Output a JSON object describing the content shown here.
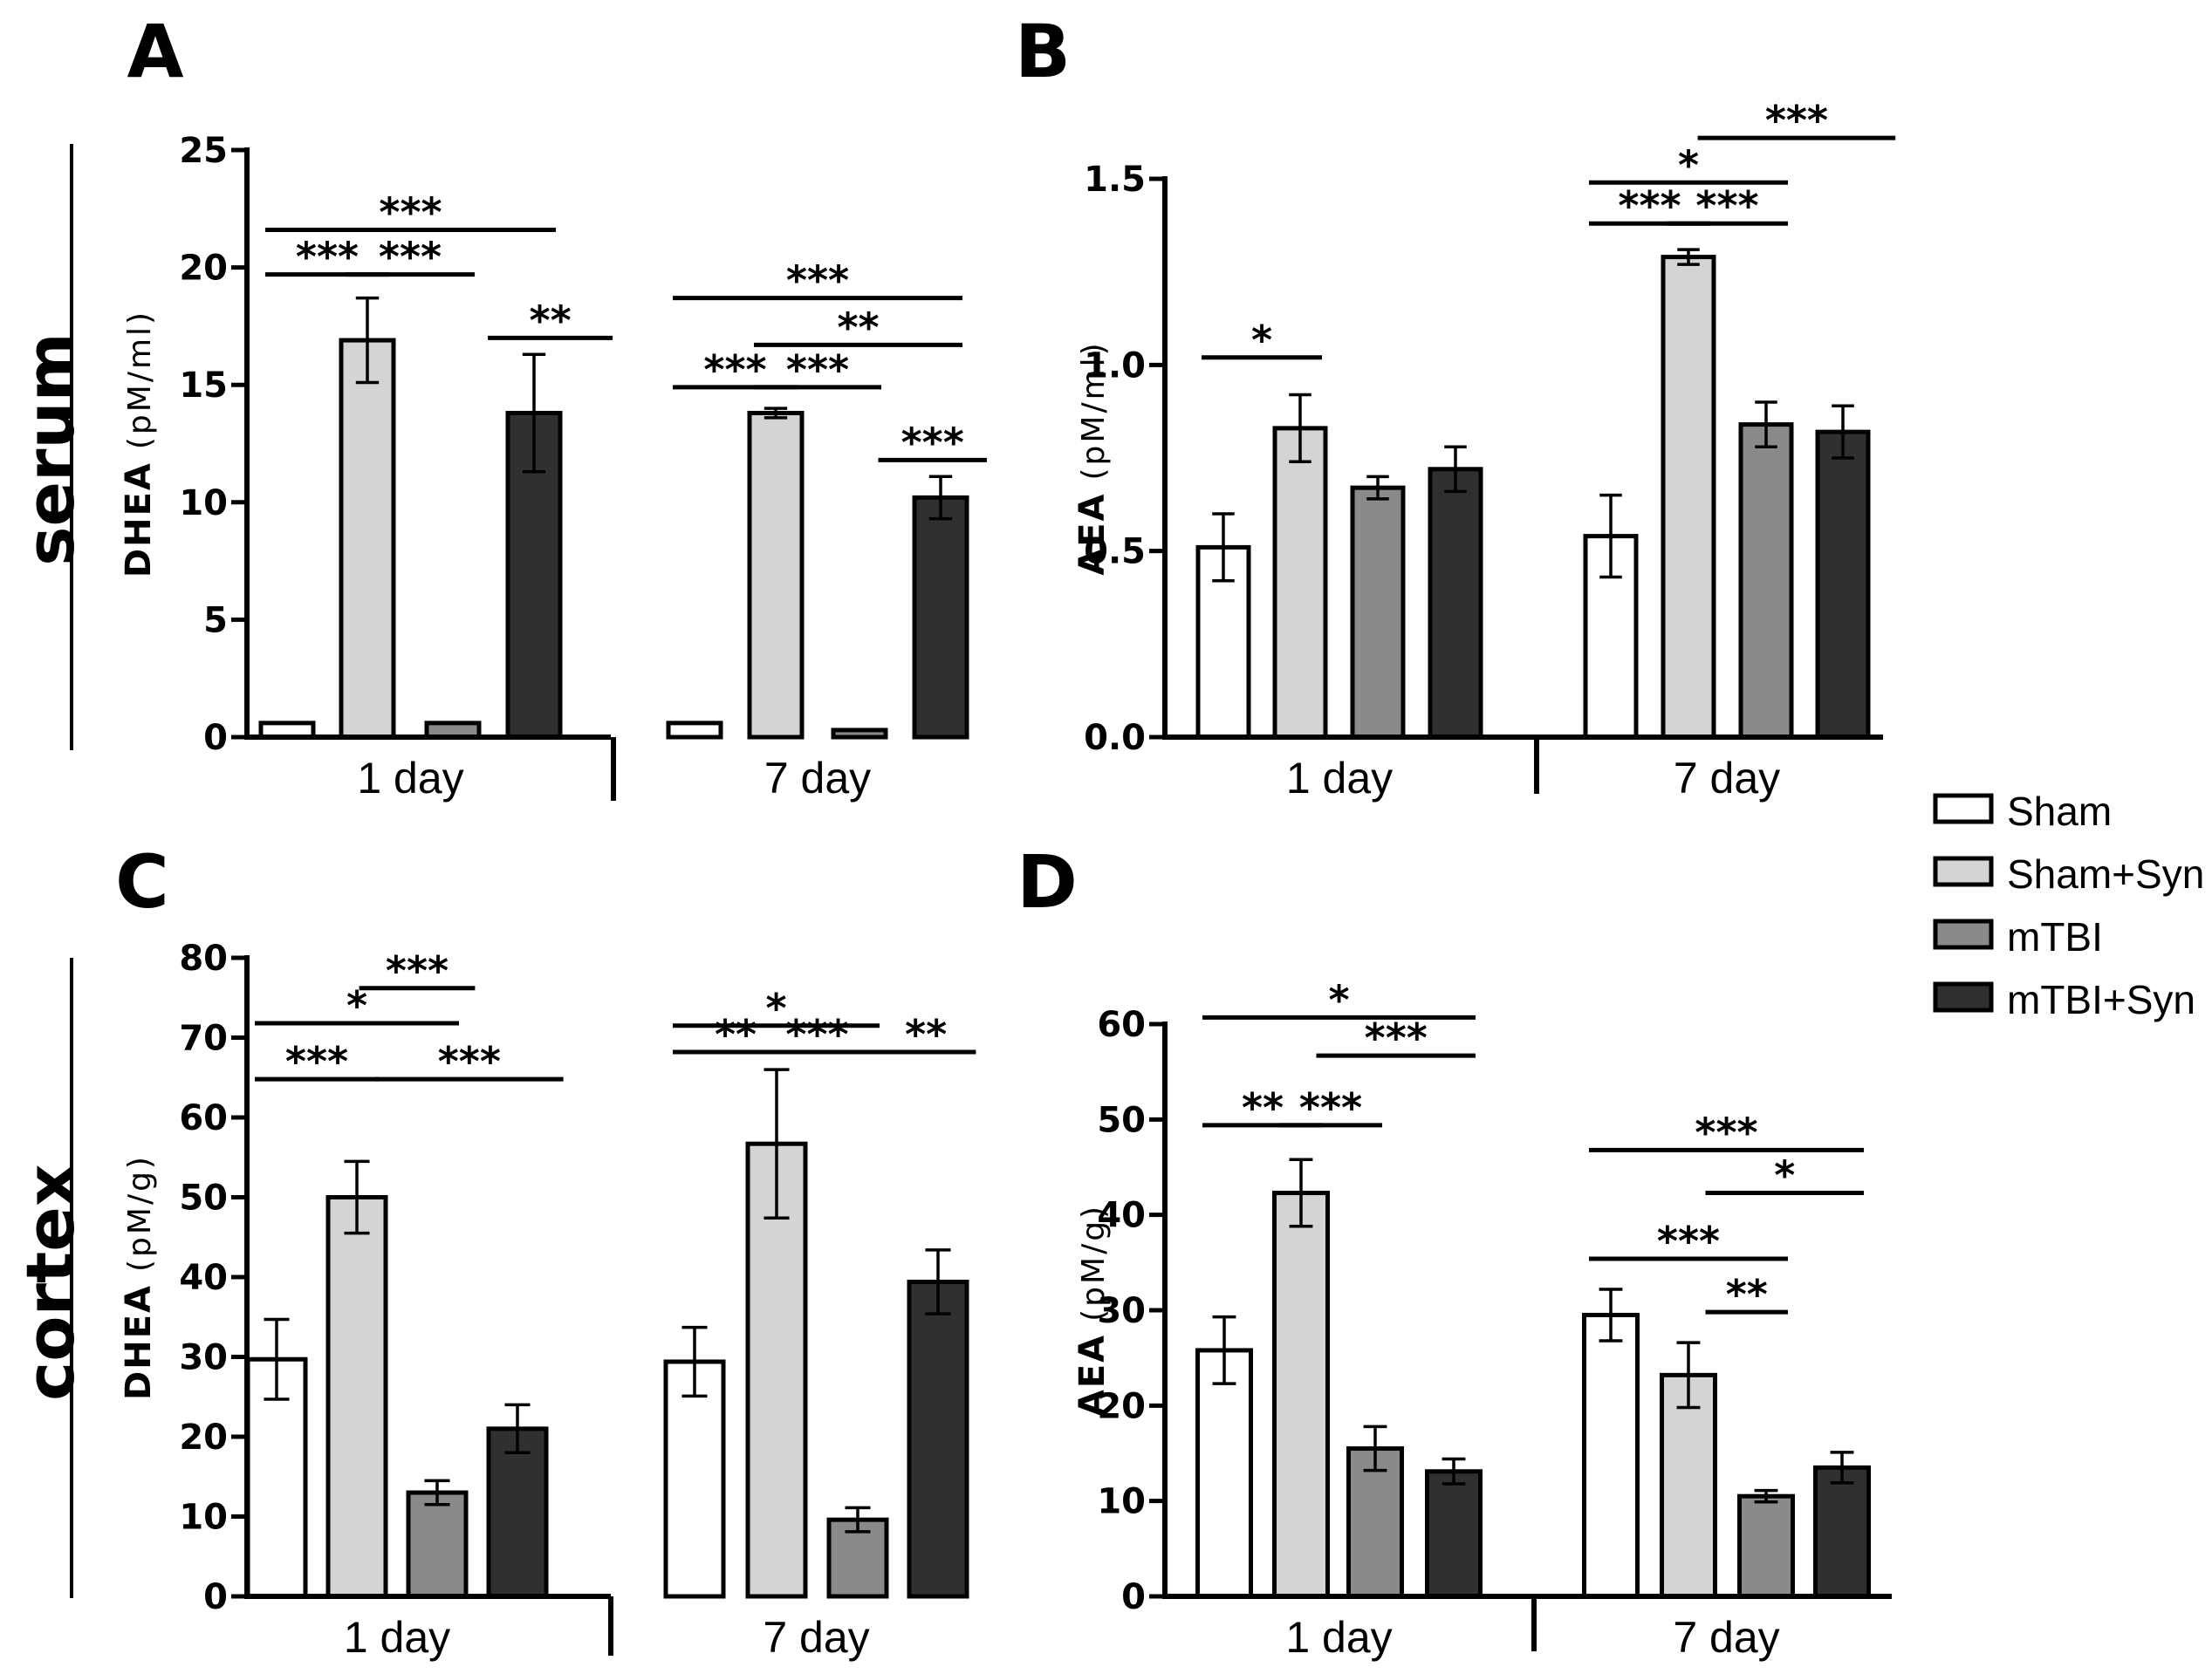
{
  "row_labels": [
    "serum",
    "cortex"
  ],
  "legend": [
    {
      "label": "Sham",
      "color": "#ffffff"
    },
    {
      "label": "Sham+Syn",
      "color": "#d4d4d4"
    },
    {
      "label": "mTBI",
      "color": "#8a8a8a"
    },
    {
      "label": "mTBI+Syn",
      "color": "#303030"
    }
  ],
  "chart_data": [
    {
      "panel": "A",
      "type": "bar",
      "categories": [
        "1 day",
        "7 day"
      ],
      "ylabel": "DHEA",
      "yunit": "(pM/ml)",
      "ylim": [
        0,
        25
      ],
      "yticks": [
        "0",
        "5",
        "10",
        "15",
        "20",
        "25"
      ],
      "series": [
        {
          "name": "Sham",
          "values": [
            0.6,
            0.6
          ],
          "errors": [
            0,
            0
          ]
        },
        {
          "name": "Sham+Syn",
          "values": [
            16.9,
            13.8
          ],
          "errors": [
            1.8,
            0.2
          ]
        },
        {
          "name": "mTBI",
          "values": [
            0.6,
            0.3
          ],
          "errors": [
            0,
            0
          ]
        },
        {
          "name": "mTBI+Syn",
          "values": [
            13.8,
            10.2
          ],
          "errors": [
            2.5,
            0.9
          ]
        }
      ],
      "significance": [
        {
          "group": 0,
          "from": 0,
          "to": 3,
          "y": 21.6,
          "label": "***"
        },
        {
          "group": 0,
          "from": 0,
          "to": 1,
          "y": 19.7,
          "label": "***"
        },
        {
          "group": 0,
          "from": 1,
          "to": 2,
          "y": 19.7,
          "label": "***"
        },
        {
          "group": 0,
          "from": 2.7,
          "to": 3.7,
          "y": 17.0,
          "label": "**"
        },
        {
          "group": 1,
          "from": 0,
          "to": 3,
          "y": 18.7,
          "label": "***"
        },
        {
          "group": 1,
          "from": 1,
          "to": 3,
          "y": 16.7,
          "label": "**"
        },
        {
          "group": 1,
          "from": 0,
          "to": 1,
          "y": 14.9,
          "label": "***"
        },
        {
          "group": 1,
          "from": 1,
          "to": 2,
          "y": 14.9,
          "label": "***"
        },
        {
          "group": 1,
          "from": 2.5,
          "to": 3.3,
          "y": 11.8,
          "label": "***"
        }
      ]
    },
    {
      "panel": "B",
      "type": "bar",
      "categories": [
        "1 day",
        "7 day"
      ],
      "ylabel": "AEA",
      "yunit": "(pM/ml)",
      "ylim": [
        0,
        1.5
      ],
      "yticks": [
        "0.0",
        "0.5",
        "1.0",
        "1.5"
      ],
      "series": [
        {
          "name": "Sham",
          "values": [
            0.51,
            0.54
          ],
          "errors": [
            0.09,
            0.11
          ]
        },
        {
          "name": "Sham+Syn",
          "values": [
            0.83,
            1.29
          ],
          "errors": [
            0.09,
            0.02
          ]
        },
        {
          "name": "mTBI",
          "values": [
            0.67,
            0.84
          ],
          "errors": [
            0.03,
            0.06
          ]
        },
        {
          "name": "mTBI+Syn",
          "values": [
            0.72,
            0.82
          ],
          "errors": [
            0.06,
            0.07
          ]
        }
      ],
      "significance": [
        {
          "group": 0,
          "from": 0,
          "to": 1,
          "y": 1.02,
          "label": "*"
        },
        {
          "group": 1,
          "from": 1.4,
          "to": 3.4,
          "y": 1.61,
          "label": "***"
        },
        {
          "group": 1,
          "from": 0,
          "to": 2,
          "y": 1.49,
          "label": "*"
        },
        {
          "group": 1,
          "from": 0,
          "to": 1,
          "y": 1.38,
          "label": "***"
        },
        {
          "group": 1,
          "from": 1,
          "to": 2,
          "y": 1.38,
          "label": "***"
        }
      ]
    },
    {
      "panel": "C",
      "type": "bar",
      "categories": [
        "1 day",
        "7 day"
      ],
      "ylabel": "DHEA",
      "yunit": "(pM/g)",
      "ylim": [
        0,
        80
      ],
      "yticks": [
        "0",
        "10",
        "20",
        "30",
        "40",
        "50",
        "60",
        "70",
        "80"
      ],
      "series": [
        {
          "name": "Sham",
          "values": [
            29.7,
            29.4
          ],
          "errors": [
            5,
            4.3
          ]
        },
        {
          "name": "Sham+Syn",
          "values": [
            50,
            56.7
          ],
          "errors": [
            4.5,
            9.3
          ]
        },
        {
          "name": "mTBI",
          "values": [
            13,
            9.6
          ],
          "errors": [
            1.5,
            1.5
          ]
        },
        {
          "name": "mTBI+Syn",
          "values": [
            21,
            39.4
          ],
          "errors": [
            3,
            4
          ]
        }
      ],
      "significance": [
        {
          "group": 0,
          "from": 1.3,
          "to": 2.2,
          "y": 76.2,
          "label": "***"
        },
        {
          "group": 0,
          "from": 0,
          "to": 2,
          "y": 71.8,
          "label": "*"
        },
        {
          "group": 0,
          "from": 0,
          "to": 1,
          "y": 64.8,
          "label": "***"
        },
        {
          "group": 0,
          "from": 1.5,
          "to": 3.3,
          "y": 64.8,
          "label": "***"
        },
        {
          "group": 1,
          "from": 0,
          "to": 2,
          "y": 71.5,
          "label": "*"
        },
        {
          "group": 1,
          "from": 0,
          "to": 1,
          "y": 68.2,
          "label": "**"
        },
        {
          "group": 1,
          "from": 1,
          "to": 2,
          "y": 68.2,
          "label": "***"
        },
        {
          "group": 1,
          "from": 2.5,
          "to": 3.2,
          "y": 68.2,
          "label": "**"
        }
      ]
    },
    {
      "panel": "D",
      "type": "bar",
      "categories": [
        "1 day",
        "7 day"
      ],
      "ylabel": "AEA",
      "yunit": "(pM/g)",
      "ylim": [
        0,
        60
      ],
      "yticks": [
        "0",
        "10",
        "20",
        "30",
        "40",
        "50",
        "60"
      ],
      "series": [
        {
          "name": "Sham",
          "values": [
            25.8,
            29.5
          ],
          "errors": [
            3.5,
            2.7
          ]
        },
        {
          "name": "Sham+Syn",
          "values": [
            42.3,
            23.2
          ],
          "errors": [
            3.5,
            3.4
          ]
        },
        {
          "name": "mTBI",
          "values": [
            15.5,
            10.5
          ],
          "errors": [
            2.3,
            0.6
          ]
        },
        {
          "name": "mTBI+Syn",
          "values": [
            13.1,
            13.5
          ],
          "errors": [
            1.3,
            1.6
          ]
        }
      ],
      "significance": [
        {
          "group": 0,
          "from": 0,
          "to": 3,
          "y": 60.7,
          "label": "*"
        },
        {
          "group": 0,
          "from": 1.5,
          "to": 3,
          "y": 56.7,
          "label": "***"
        },
        {
          "group": 0,
          "from": 0,
          "to": 1,
          "y": 49.4,
          "label": "**"
        },
        {
          "group": 0,
          "from": 1,
          "to": 1.8,
          "y": 49.4,
          "label": "***"
        },
        {
          "group": 1,
          "from": 0,
          "to": 3,
          "y": 46.8,
          "label": "***"
        },
        {
          "group": 1,
          "from": 1.5,
          "to": 3,
          "y": 42.3,
          "label": "*"
        },
        {
          "group": 1,
          "from": 0,
          "to": 2,
          "y": 35.4,
          "label": "***"
        },
        {
          "group": 1,
          "from": 1.5,
          "to": 2,
          "y": 29.8,
          "label": "**"
        }
      ]
    }
  ]
}
